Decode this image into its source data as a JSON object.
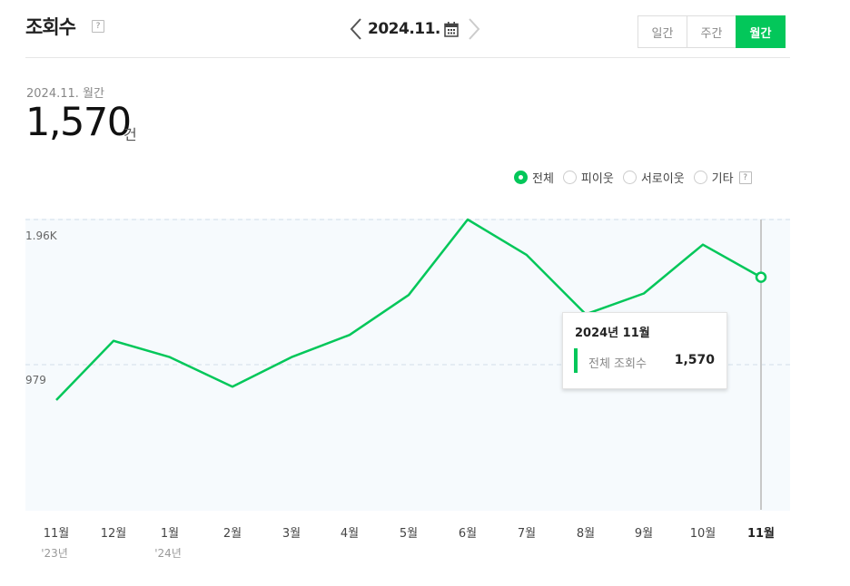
{
  "header": {
    "title": "조회수",
    "help_glyph": "?",
    "date_label": "2024.11.",
    "icons": {
      "prev": "chevron-left-icon",
      "next": "chevron-right-icon",
      "calendar": "calendar-icon"
    }
  },
  "period_tabs": [
    {
      "label": "일간",
      "active": false
    },
    {
      "label": "주간",
      "active": false
    },
    {
      "label": "월간",
      "active": true
    }
  ],
  "summary": {
    "label": "2024.11. 월간",
    "total": "1,570",
    "unit": "건"
  },
  "filters": [
    {
      "label": "전체",
      "checked": true
    },
    {
      "label": "피이웃",
      "checked": false
    },
    {
      "label": "서로이웃",
      "checked": false
    },
    {
      "label": "기타",
      "checked": false,
      "help": true
    }
  ],
  "colors": {
    "accent": "#03c75a",
    "chart_bg": "#f6fafd",
    "grid": "#dde8f0",
    "crosshair": "#c8c8c8"
  },
  "chart_data": {
    "type": "line",
    "y_ticks": [
      {
        "label": "1.96K",
        "value": 1960
      },
      {
        "label": "979",
        "value": 979
      }
    ],
    "ylim": [
      0,
      1960
    ],
    "grid": "dashed-horizontal",
    "categories": [
      "11월",
      "12월",
      "1월",
      "2월",
      "3월",
      "4월",
      "5월",
      "6월",
      "7월",
      "8월",
      "9월",
      "10월",
      "11월"
    ],
    "category_sublabels": [
      "'23년",
      "",
      "'24년",
      "",
      "",
      "",
      "",
      "",
      "",
      "",
      "",
      "",
      ""
    ],
    "series": [
      {
        "values": [
          740,
          1140,
          1030,
          830,
          1030,
          1180,
          1450,
          1960,
          1720,
          1320,
          1460,
          1790,
          1570
        ]
      }
    ],
    "highlight_index": 12
  },
  "tooltip": {
    "title": "2024년 11월",
    "label": "전체 조회수",
    "value": "1,570"
  }
}
